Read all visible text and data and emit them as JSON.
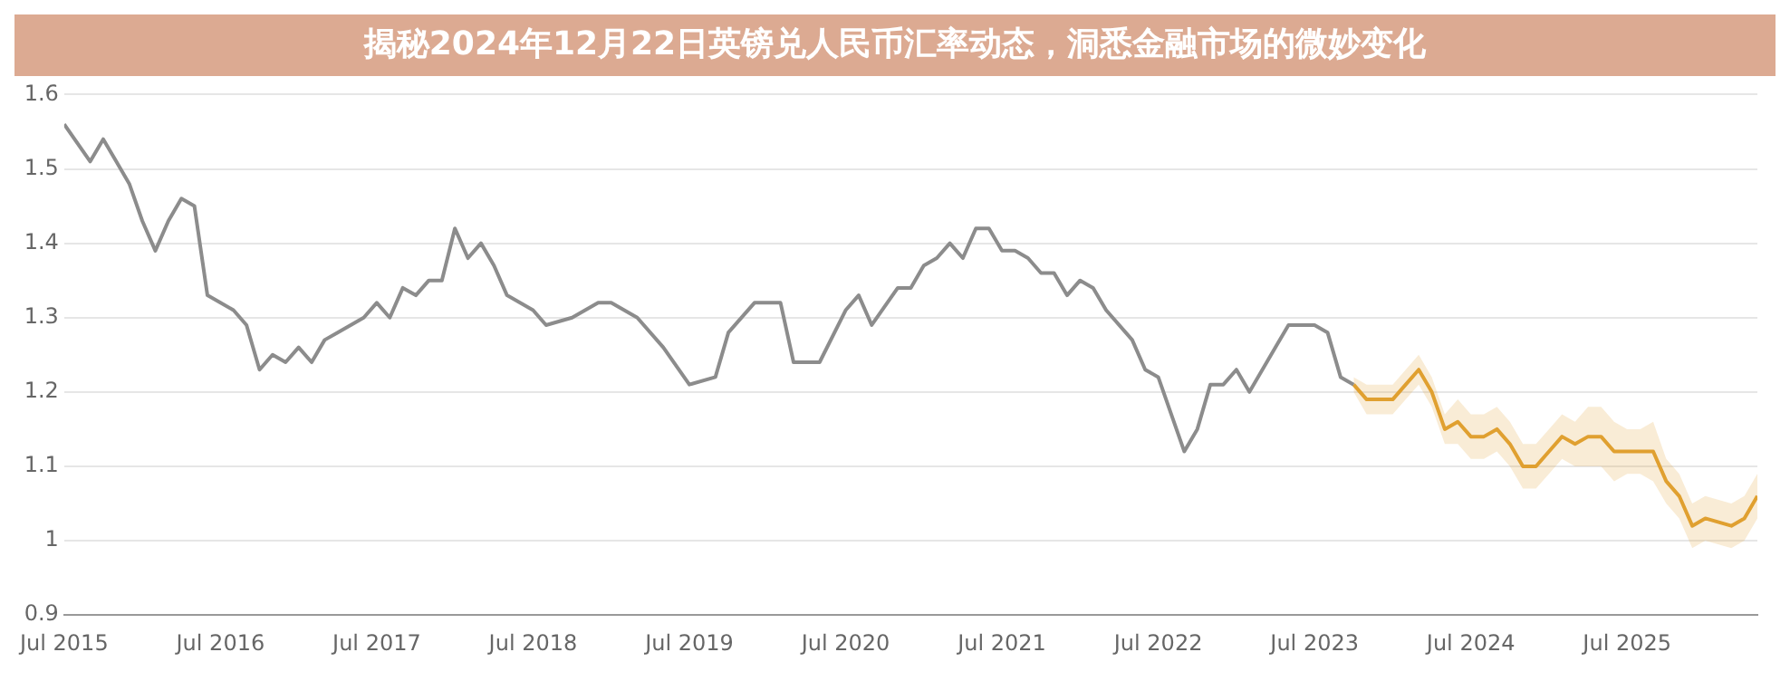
{
  "chart_data": {
    "type": "line",
    "title": "揭秘2024年12月22日英镑兑人民币汇率动态，洞悉金融市场的微妙变化",
    "xlim": [
      "2015-07",
      "2026-05"
    ],
    "xticks": [
      {
        "value": "2015-07",
        "label": "Jul 2015"
      },
      {
        "value": "2016-07",
        "label": "Jul 2016"
      },
      {
        "value": "2017-07",
        "label": "Jul 2017"
      },
      {
        "value": "2018-07",
        "label": "Jul 2018"
      },
      {
        "value": "2019-07",
        "label": "Jul 2019"
      },
      {
        "value": "2020-07",
        "label": "Jul 2020"
      },
      {
        "value": "2021-07",
        "label": "Jul 2021"
      },
      {
        "value": "2022-07",
        "label": "Jul 2022"
      },
      {
        "value": "2023-07",
        "label": "Jul 2023"
      },
      {
        "value": "2024-07",
        "label": "Jul 2024"
      },
      {
        "value": "2025-07",
        "label": "Jul 2025"
      }
    ],
    "ylim": [
      0.9,
      1.6
    ],
    "yticks": [
      0.9,
      1,
      1.1,
      1.2,
      1.3,
      1.4,
      1.5,
      1.6
    ],
    "grid": "y",
    "line_style": "solid",
    "series": [
      {
        "color": "#8c8c8c",
        "x": [
          "2015-07",
          "2015-09",
          "2015-10",
          "2015-11",
          "2015-12",
          "2016-01",
          "2016-02",
          "2016-03",
          "2016-04",
          "2016-05",
          "2016-06",
          "2016-07",
          "2016-08",
          "2016-09",
          "2016-10",
          "2016-11",
          "2016-12",
          "2017-01",
          "2017-02",
          "2017-03",
          "2017-04",
          "2017-05",
          "2017-06",
          "2017-07",
          "2017-08",
          "2017-09",
          "2017-10",
          "2017-11",
          "2017-12",
          "2018-01",
          "2018-02",
          "2018-03",
          "2018-04",
          "2018-05",
          "2018-06",
          "2018-07",
          "2018-08",
          "2018-10",
          "2018-12",
          "2019-01",
          "2019-03",
          "2019-05",
          "2019-07",
          "2019-09",
          "2019-10",
          "2019-12",
          "2020-02",
          "2020-03",
          "2020-05",
          "2020-07",
          "2020-08",
          "2020-09",
          "2020-11",
          "2020-12",
          "2021-01",
          "2021-02",
          "2021-03",
          "2021-04",
          "2021-05",
          "2021-06",
          "2021-07",
          "2021-08",
          "2021-09",
          "2021-10",
          "2021-11",
          "2021-12",
          "2022-01",
          "2022-02",
          "2022-03",
          "2022-05",
          "2022-06",
          "2022-07",
          "2022-09",
          "2022-10",
          "2022-11",
          "2022-12",
          "2023-01",
          "2023-02",
          "2023-04",
          "2023-05",
          "2023-07",
          "2023-08",
          "2023-09",
          "2023-10"
        ],
        "values": [
          1.56,
          1.51,
          1.54,
          1.51,
          1.48,
          1.43,
          1.39,
          1.43,
          1.46,
          1.45,
          1.33,
          1.32,
          1.31,
          1.29,
          1.23,
          1.25,
          1.24,
          1.26,
          1.24,
          1.27,
          1.28,
          1.29,
          1.3,
          1.32,
          1.3,
          1.34,
          1.33,
          1.35,
          1.35,
          1.42,
          1.38,
          1.4,
          1.37,
          1.33,
          1.32,
          1.31,
          1.29,
          1.3,
          1.32,
          1.32,
          1.3,
          1.26,
          1.21,
          1.22,
          1.28,
          1.32,
          1.32,
          1.24,
          1.24,
          1.31,
          1.33,
          1.29,
          1.34,
          1.34,
          1.37,
          1.38,
          1.4,
          1.38,
          1.42,
          1.42,
          1.39,
          1.39,
          1.38,
          1.36,
          1.36,
          1.33,
          1.35,
          1.34,
          1.31,
          1.27,
          1.23,
          1.22,
          1.12,
          1.15,
          1.21,
          1.21,
          1.23,
          1.2,
          1.26,
          1.29,
          1.29,
          1.28,
          1.22,
          1.21
        ]
      },
      {
        "color": "#e0a030",
        "x": [
          "2023-10",
          "2023-11",
          "2024-01",
          "2024-02",
          "2024-03",
          "2024-04",
          "2024-05",
          "2024-06",
          "2024-07",
          "2024-08",
          "2024-09",
          "2024-10",
          "2024-11",
          "2024-12",
          "2025-01",
          "2025-02",
          "2025-03",
          "2025-04",
          "2025-05",
          "2025-06",
          "2025-07",
          "2025-08",
          "2025-09",
          "2025-10",
          "2025-11",
          "2025-12",
          "2026-01",
          "2026-03",
          "2026-04",
          "2026-05"
        ],
        "values": [
          1.21,
          1.19,
          1.19,
          1.21,
          1.23,
          1.2,
          1.15,
          1.16,
          1.14,
          1.14,
          1.15,
          1.13,
          1.1,
          1.1,
          1.12,
          1.14,
          1.13,
          1.14,
          1.14,
          1.12,
          1.12,
          1.12,
          1.12,
          1.08,
          1.06,
          1.02,
          1.03,
          1.02,
          1.03,
          1.06
        ],
        "lower": [
          1.2,
          1.17,
          1.17,
          1.19,
          1.21,
          1.18,
          1.13,
          1.13,
          1.11,
          1.11,
          1.12,
          1.1,
          1.07,
          1.07,
          1.09,
          1.11,
          1.1,
          1.1,
          1.1,
          1.08,
          1.09,
          1.09,
          1.08,
          1.05,
          1.03,
          0.99,
          1.0,
          0.99,
          1.0,
          1.03
        ],
        "upper": [
          1.22,
          1.21,
          1.21,
          1.23,
          1.25,
          1.22,
          1.17,
          1.19,
          1.17,
          1.17,
          1.18,
          1.16,
          1.13,
          1.13,
          1.15,
          1.17,
          1.16,
          1.18,
          1.18,
          1.16,
          1.15,
          1.15,
          1.16,
          1.11,
          1.09,
          1.05,
          1.06,
          1.05,
          1.06,
          1.09
        ]
      }
    ]
  }
}
